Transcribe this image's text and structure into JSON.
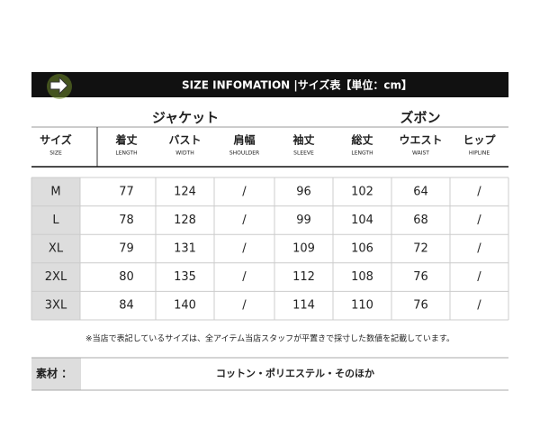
{
  "banner": {
    "title": "SIZE INFOMATION |サイズ表【単位：cm】"
  },
  "groups": [
    "ジャケット",
    "ズボン"
  ],
  "table": {
    "size_header": {
      "label": "サイズ",
      "sub": "SIZE"
    },
    "columns": [
      {
        "label": "着丈",
        "sub": "LENGTH"
      },
      {
        "label": "バスト",
        "sub": "WIDTH"
      },
      {
        "label": "肩幅",
        "sub": "SHOULDER"
      },
      {
        "label": "袖丈",
        "sub": "SLEEVE"
      },
      {
        "label": "総丈",
        "sub": "LENGTH"
      },
      {
        "label": "ウエスト",
        "sub": "WAIST"
      },
      {
        "label": "ヒップ",
        "sub": "HIPLINE"
      }
    ],
    "rows": [
      {
        "size": "M",
        "cells": [
          77,
          124,
          "/",
          96,
          102,
          64,
          "/"
        ]
      },
      {
        "size": "L",
        "cells": [
          78,
          128,
          "/",
          99,
          104,
          68,
          "/"
        ]
      },
      {
        "size": "XL",
        "cells": [
          79,
          131,
          "/",
          109,
          106,
          72,
          "/"
        ]
      },
      {
        "size": "2XL",
        "cells": [
          80,
          135,
          "/",
          112,
          108,
          76,
          "/"
        ]
      },
      {
        "size": "3XL",
        "cells": [
          84,
          140,
          "/",
          114,
          110,
          76,
          "/"
        ]
      }
    ]
  },
  "note": "※当店で表記しているサイズは、全アイテム当店スタッフが平置きで採寸した数値を記載しています。",
  "material": {
    "label": "素材 ：",
    "value": "コットン・ポリエステル・そのほか"
  }
}
